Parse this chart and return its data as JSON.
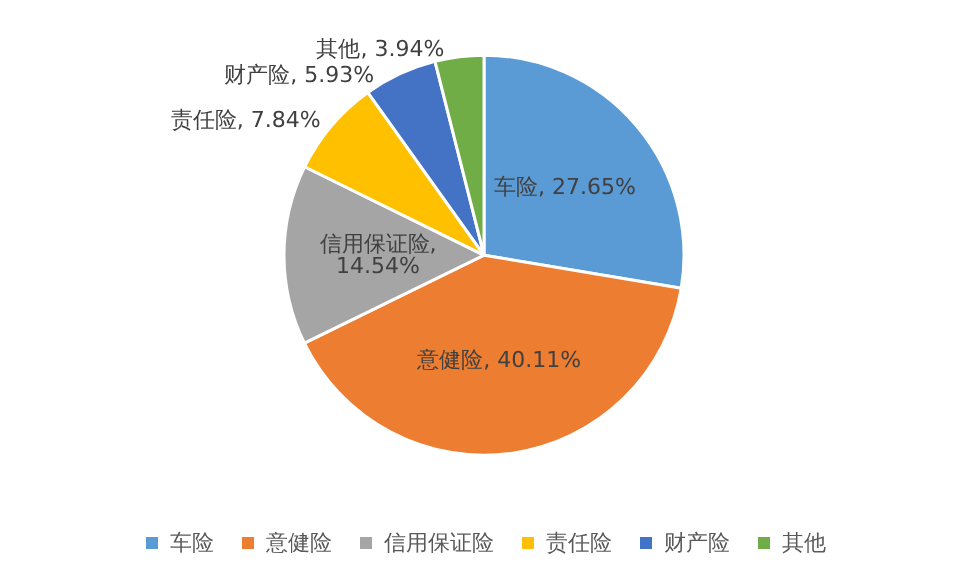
{
  "chart_data": {
    "type": "pie",
    "categories": [
      "车险",
      "意健险",
      "信用保证险",
      "责任险",
      "财产险",
      "其他"
    ],
    "values": [
      27.65,
      40.11,
      14.54,
      7.84,
      5.93,
      3.94
    ],
    "colors": [
      "#5b9bd5",
      "#ed7d31",
      "#a5a5a5",
      "#ffc000",
      "#4472c4",
      "#70ad47"
    ],
    "legend": "bottom",
    "value_labels": [
      "车险, 27.65%",
      "意健险, 40.11%",
      "信用保证险, 14.54%",
      "责任险, 7.84%",
      "财产险, 5.93%",
      "其他, 3.94%"
    ]
  }
}
